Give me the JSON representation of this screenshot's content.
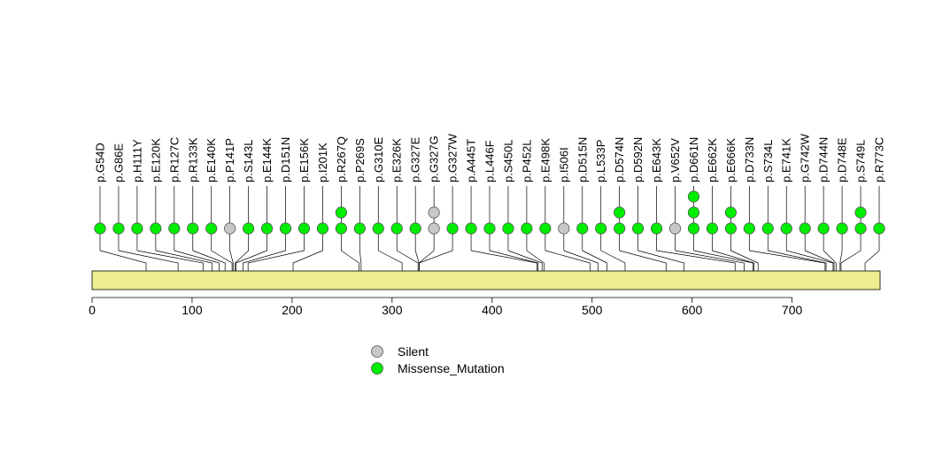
{
  "chart_data": {
    "type": "lollipop",
    "title": "",
    "xlabel": "",
    "ylabel": "",
    "xlim": [
      0,
      788
    ],
    "x_ticks": [
      0,
      100,
      200,
      300,
      400,
      500,
      600,
      700
    ],
    "protein_length": 788,
    "colors": {
      "Missense_Mutation": "#00ee00",
      "Silent": "#c8c8c8",
      "domain_fill": "#eeee90",
      "line": "#000000"
    },
    "legend": {
      "placement": "bottom-center",
      "entries": [
        {
          "label": "Silent",
          "color": "#c8c8c8"
        },
        {
          "label": "Missense_Mutation",
          "color": "#00ee00"
        }
      ]
    },
    "mutations": [
      {
        "label": "p.G54D",
        "position": 54,
        "points": [
          "Missense_Mutation"
        ]
      },
      {
        "label": "p.G86E",
        "position": 86,
        "points": [
          "Missense_Mutation"
        ]
      },
      {
        "label": "p.H111Y",
        "position": 111,
        "points": [
          "Missense_Mutation"
        ]
      },
      {
        "label": "p.E120K",
        "position": 120,
        "points": [
          "Missense_Mutation"
        ]
      },
      {
        "label": "p.R127C",
        "position": 127,
        "points": [
          "Missense_Mutation"
        ]
      },
      {
        "label": "p.R133K",
        "position": 133,
        "points": [
          "Missense_Mutation"
        ]
      },
      {
        "label": "p.E140K",
        "position": 140,
        "points": [
          "Missense_Mutation"
        ]
      },
      {
        "label": "p.P141P",
        "position": 141,
        "points": [
          "Silent"
        ]
      },
      {
        "label": "p.S143L",
        "position": 143,
        "points": [
          "Missense_Mutation"
        ]
      },
      {
        "label": "p.E144K",
        "position": 144,
        "points": [
          "Missense_Mutation"
        ]
      },
      {
        "label": "p.D151N",
        "position": 151,
        "points": [
          "Missense_Mutation"
        ]
      },
      {
        "label": "p.E156K",
        "position": 156,
        "points": [
          "Missense_Mutation"
        ]
      },
      {
        "label": "p.I201K",
        "position": 201,
        "points": [
          "Missense_Mutation"
        ]
      },
      {
        "label": "p.R267Q",
        "position": 267,
        "points": [
          "Missense_Mutation",
          "Missense_Mutation"
        ]
      },
      {
        "label": "p.P269S",
        "position": 269,
        "points": [
          "Missense_Mutation"
        ]
      },
      {
        "label": "p.G310E",
        "position": 310,
        "points": [
          "Missense_Mutation"
        ]
      },
      {
        "label": "p.E326K",
        "position": 326,
        "points": [
          "Missense_Mutation"
        ]
      },
      {
        "label": "p.G327E",
        "position": 327,
        "points": [
          "Missense_Mutation"
        ]
      },
      {
        "label": "p.G327G",
        "position": 327,
        "points": [
          "Silent",
          "Silent"
        ]
      },
      {
        "label": "p.G327W",
        "position": 327,
        "points": [
          "Missense_Mutation"
        ]
      },
      {
        "label": "p.A445T",
        "position": 445,
        "points": [
          "Missense_Mutation"
        ]
      },
      {
        "label": "p.L446F",
        "position": 446,
        "points": [
          "Missense_Mutation"
        ]
      },
      {
        "label": "p.S450L",
        "position": 450,
        "points": [
          "Missense_Mutation"
        ]
      },
      {
        "label": "p.P452L",
        "position": 452,
        "points": [
          "Missense_Mutation"
        ]
      },
      {
        "label": "p.E498K",
        "position": 498,
        "points": [
          "Missense_Mutation"
        ]
      },
      {
        "label": "p.I506I",
        "position": 506,
        "points": [
          "Silent"
        ]
      },
      {
        "label": "p.D515N",
        "position": 515,
        "points": [
          "Missense_Mutation"
        ]
      },
      {
        "label": "p.L533P",
        "position": 533,
        "points": [
          "Missense_Mutation"
        ]
      },
      {
        "label": "p.D574N",
        "position": 574,
        "points": [
          "Missense_Mutation",
          "Missense_Mutation"
        ]
      },
      {
        "label": "p.D592N",
        "position": 592,
        "points": [
          "Missense_Mutation"
        ]
      },
      {
        "label": "p.E643K",
        "position": 643,
        "points": [
          "Missense_Mutation"
        ]
      },
      {
        "label": "p.V652V",
        "position": 652,
        "points": [
          "Silent"
        ]
      },
      {
        "label": "p.D661N",
        "position": 661,
        "points": [
          "Missense_Mutation",
          "Missense_Mutation",
          "Missense_Mutation"
        ]
      },
      {
        "label": "p.E662K",
        "position": 662,
        "points": [
          "Missense_Mutation"
        ]
      },
      {
        "label": "p.E666K",
        "position": 666,
        "points": [
          "Missense_Mutation",
          "Missense_Mutation"
        ]
      },
      {
        "label": "p.D733N",
        "position": 733,
        "points": [
          "Missense_Mutation"
        ]
      },
      {
        "label": "p.S734L",
        "position": 734,
        "points": [
          "Missense_Mutation"
        ]
      },
      {
        "label": "p.E741K",
        "position": 741,
        "points": [
          "Missense_Mutation"
        ]
      },
      {
        "label": "p.G742W",
        "position": 742,
        "points": [
          "Missense_Mutation"
        ]
      },
      {
        "label": "p.D744N",
        "position": 744,
        "points": [
          "Missense_Mutation"
        ]
      },
      {
        "label": "p.D748E",
        "position": 748,
        "points": [
          "Missense_Mutation"
        ]
      },
      {
        "label": "p.S749L",
        "position": 749,
        "points": [
          "Missense_Mutation",
          "Missense_Mutation"
        ]
      },
      {
        "label": "p.R773C",
        "position": 773,
        "points": [
          "Missense_Mutation"
        ]
      }
    ]
  }
}
